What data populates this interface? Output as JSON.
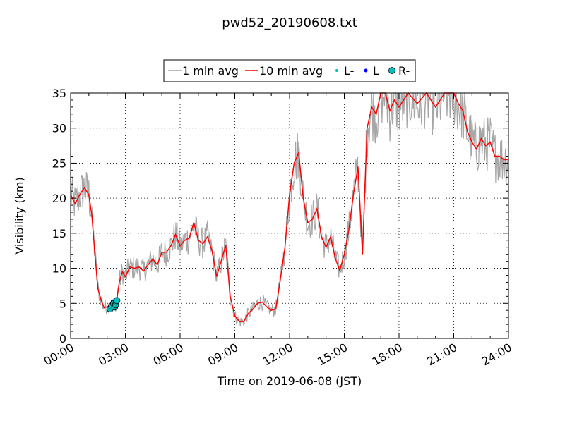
{
  "chart_data": {
    "type": "line",
    "title": "pwd52_20190608.txt",
    "xlabel": "Time on 2019-06-08 (JST)",
    "ylabel": "Visibility (km)",
    "xlim": [
      "00:00",
      "24:00"
    ],
    "ylim": [
      0,
      35
    ],
    "x_ticks": [
      "00:00",
      "03:00",
      "06:00",
      "09:00",
      "12:00",
      "15:00",
      "18:00",
      "21:00",
      "24:00"
    ],
    "y_ticks": [
      0,
      5,
      10,
      15,
      20,
      25,
      30,
      35
    ],
    "grid": true,
    "legend_position": "top-center",
    "legend": [
      {
        "label": "1 min avg",
        "marker": "line",
        "color": "#a6a6a6"
      },
      {
        "label": "10 min avg",
        "marker": "line",
        "color": "#ff0000"
      },
      {
        "label": "L-",
        "marker": "small-dot",
        "color": "#00bfbf"
      },
      {
        "label": "L",
        "marker": "dot",
        "color": "#0000ff"
      },
      {
        "label": "R-",
        "marker": "circle",
        "color": "#00bfbf"
      }
    ],
    "series": [
      {
        "name": "10 min avg",
        "color": "#ff0000",
        "x": [
          "00:00",
          "00:15",
          "00:30",
          "00:45",
          "01:00",
          "01:10",
          "01:20",
          "01:30",
          "01:40",
          "01:50",
          "02:00",
          "02:15",
          "02:30",
          "02:40",
          "02:50",
          "03:00",
          "03:15",
          "03:30",
          "03:45",
          "04:00",
          "04:15",
          "04:30",
          "04:45",
          "05:00",
          "05:15",
          "05:30",
          "05:45",
          "06:00",
          "06:15",
          "06:30",
          "06:45",
          "07:00",
          "07:15",
          "07:30",
          "07:45",
          "08:00",
          "08:15",
          "08:30",
          "08:45",
          "09:00",
          "09:15",
          "09:30",
          "09:45",
          "10:00",
          "10:15",
          "10:30",
          "10:45",
          "11:00",
          "11:15",
          "11:30",
          "11:45",
          "12:00",
          "12:15",
          "12:30",
          "12:45",
          "13:00",
          "13:15",
          "13:30",
          "13:45",
          "14:00",
          "14:15",
          "14:30",
          "14:45",
          "15:00",
          "15:15",
          "15:30",
          "15:45",
          "16:00",
          "16:15",
          "16:30",
          "16:45",
          "17:00",
          "17:15",
          "17:30",
          "17:45",
          "18:00",
          "18:30",
          "19:00",
          "19:30",
          "20:00",
          "20:30",
          "21:00",
          "21:15",
          "21:30",
          "21:45",
          "22:00",
          "22:15",
          "22:30",
          "22:45",
          "23:00",
          "23:15",
          "23:30",
          "23:45",
          "24:00"
        ],
        "y": [
          20.5,
          19.2,
          20.5,
          21.5,
          20.5,
          17.5,
          12.0,
          7.0,
          5.5,
          4.4,
          4.5,
          4.8,
          5.0,
          8.0,
          9.5,
          8.8,
          10.2,
          10.0,
          10.2,
          9.6,
          10.5,
          11.3,
          10.5,
          12.3,
          12.3,
          13.2,
          14.8,
          13.2,
          14.0,
          14.3,
          16.5,
          14.0,
          13.5,
          14.5,
          12.5,
          8.8,
          11.0,
          13.3,
          6.0,
          3.2,
          2.4,
          2.4,
          3.6,
          4.2,
          5.0,
          5.2,
          4.5,
          4.0,
          4.2,
          8.5,
          13.0,
          20.5,
          25.0,
          26.5,
          20.0,
          16.5,
          17.0,
          18.5,
          14.5,
          13.0,
          14.5,
          11.5,
          9.7,
          12.0,
          15.5,
          20.5,
          24.5,
          12.0,
          30.0,
          33.0,
          32.0,
          35.0,
          35.0,
          32.5,
          34.0,
          33.0,
          35.0,
          33.5,
          35.0,
          33.0,
          35.0,
          35.0,
          33.5,
          32.5,
          29.5,
          28.0,
          27.0,
          28.5,
          27.5,
          28.0,
          26.0,
          26.0,
          25.5,
          25.5
        ]
      },
      {
        "name": "L-",
        "color": "#00bfbf",
        "x": [
          "02:10",
          "02:12"
        ],
        "y": [
          4.2,
          4.5
        ]
      },
      {
        "name": "L",
        "color": "#0000ff",
        "x": [
          "02:15",
          "02:18",
          "02:20",
          "02:24"
        ],
        "y": [
          5.0,
          5.3,
          4.8,
          5.2
        ]
      },
      {
        "name": "R-",
        "color": "#00bfbf",
        "x": [
          "02:10",
          "02:15",
          "02:22",
          "02:25",
          "02:28",
          "02:30",
          "02:32"
        ],
        "y": [
          4.2,
          4.6,
          5.0,
          4.5,
          4.8,
          5.2,
          5.4
        ]
      }
    ]
  }
}
